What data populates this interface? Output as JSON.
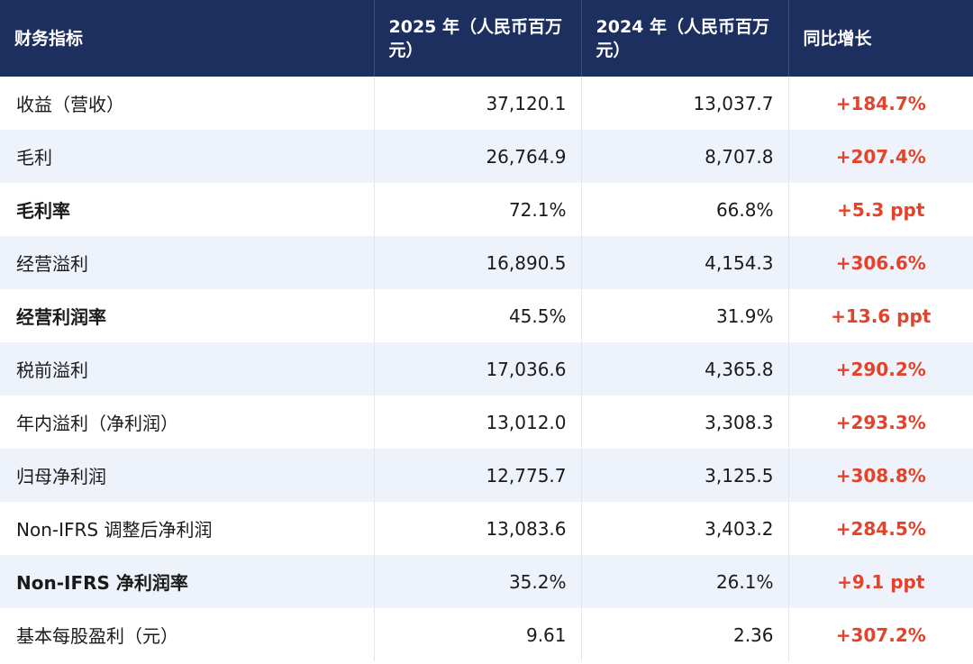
{
  "table": {
    "header": [
      "财务指标",
      "2025 年（人民币百万元）",
      "2024 年（人民币百万元）",
      "同比增长"
    ],
    "rows": [
      [
        "收益（营收）",
        "37,120.1",
        "13,037.7",
        "+184.7%"
      ],
      [
        "毛利",
        "26,764.9",
        "8,707.8",
        "+207.4%"
      ],
      [
        "毛利率",
        "72.1%",
        "66.8%",
        "+5.3 ppt"
      ],
      [
        "经营溢利",
        "16,890.5",
        "4,154.3",
        "+306.6%"
      ],
      [
        "经营利润率",
        "45.5%",
        "31.9%",
        "+13.6 ppt"
      ],
      [
        "税前溢利",
        "17,036.6",
        "4,365.8",
        "+290.2%"
      ],
      [
        "年内溢利（净利润）",
        "13,012.0",
        "3,308.3",
        "+293.3%"
      ],
      [
        "归母净利润",
        "12,775.7",
        "3,125.5",
        "+308.8%"
      ],
      [
        "Non-IFRS 调整后净利润",
        "13,083.6",
        "3,403.2",
        "+284.5%"
      ],
      [
        "Non-IFRS 净利润率",
        "35.2%",
        "26.1%",
        "+9.1 ppt"
      ],
      [
        "基本每股盈利（元）",
        "9.61",
        "2.36",
        "+307.2%"
      ]
    ]
  }
}
